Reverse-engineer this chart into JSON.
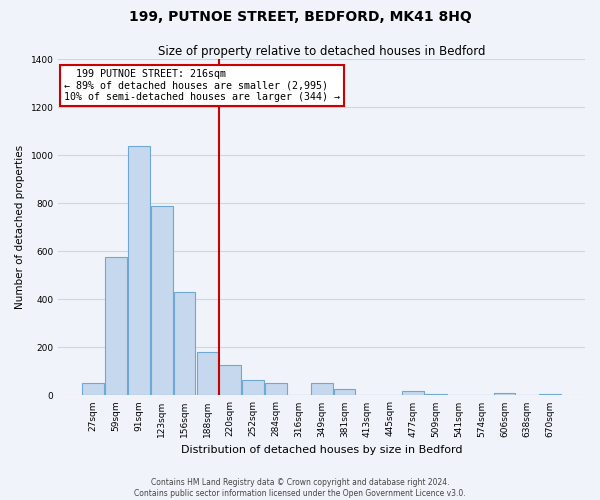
{
  "title": "199, PUTNOE STREET, BEDFORD, MK41 8HQ",
  "subtitle": "Size of property relative to detached houses in Bedford",
  "xlabel": "Distribution of detached houses by size in Bedford",
  "ylabel": "Number of detached properties",
  "bar_labels": [
    "27sqm",
    "59sqm",
    "91sqm",
    "123sqm",
    "156sqm",
    "188sqm",
    "220sqm",
    "252sqm",
    "284sqm",
    "316sqm",
    "349sqm",
    "381sqm",
    "413sqm",
    "445sqm",
    "477sqm",
    "509sqm",
    "541sqm",
    "574sqm",
    "606sqm",
    "638sqm",
    "670sqm"
  ],
  "bar_values": [
    50,
    578,
    1040,
    790,
    430,
    180,
    125,
    65,
    50,
    0,
    50,
    25,
    0,
    0,
    20,
    5,
    0,
    0,
    10,
    0,
    5
  ],
  "bar_color": "#c5d8ed",
  "bar_edge_color": "#6fa8d0",
  "annotation_title": "199 PUTNOE STREET: 216sqm",
  "annotation_line1": "← 89% of detached houses are smaller (2,995)",
  "annotation_line2": "10% of semi-detached houses are larger (344) →",
  "vline_index": 6,
  "vline_color": "#cc0000",
  "annotation_box_color": "#ffffff",
  "annotation_box_edge": "#cc0000",
  "ylim": [
    0,
    1400
  ],
  "yticks": [
    0,
    200,
    400,
    600,
    800,
    1000,
    1200,
    1400
  ],
  "footer1": "Contains HM Land Registry data © Crown copyright and database right 2024.",
  "footer2": "Contains public sector information licensed under the Open Government Licence v3.0.",
  "bg_color": "#f0f4fa",
  "grid_color": "#c8d8e8",
  "title_fontsize": 10,
  "subtitle_fontsize": 8.5,
  "xlabel_fontsize": 8,
  "ylabel_fontsize": 7.5,
  "tick_fontsize": 6.5,
  "footer_fontsize": 5.5
}
